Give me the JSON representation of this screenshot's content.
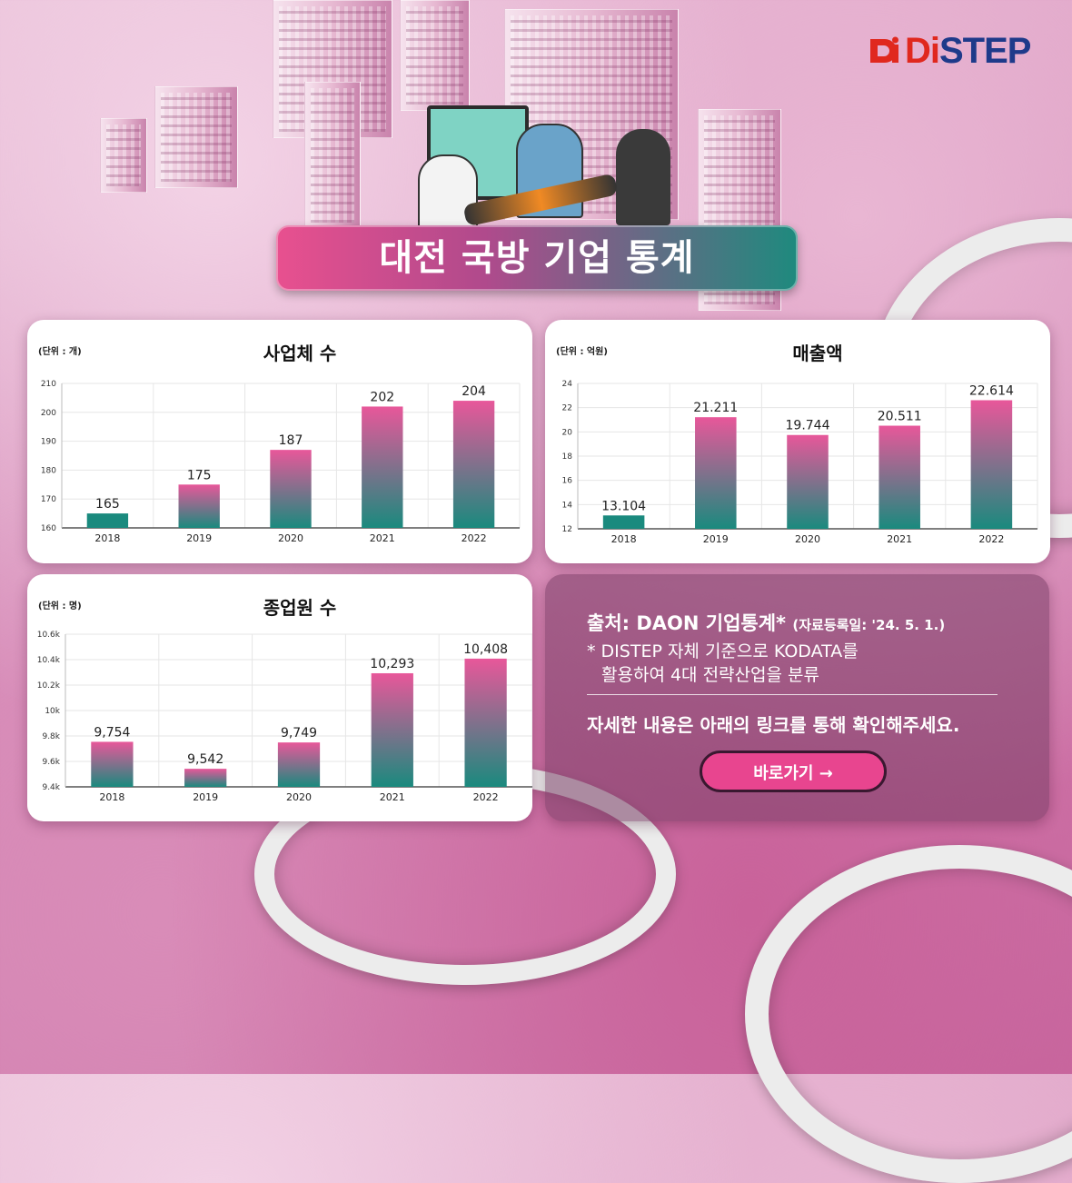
{
  "logo": {
    "text_red": "Di",
    "text_blue": "STEP"
  },
  "title": "대전 국방 기업 통계",
  "charts": [
    {
      "id": "companies",
      "title": "사업체 수",
      "unit": "(단위 : 개)"
    },
    {
      "id": "sales",
      "title": "매출액",
      "unit": "(단위 : 억원)"
    },
    {
      "id": "employees",
      "title": "종업원 수",
      "unit": "(단위 : 명)"
    }
  ],
  "chart_data": [
    {
      "type": "bar",
      "title": "사업체 수",
      "categories": [
        "2018",
        "2019",
        "2020",
        "2021",
        "2022"
      ],
      "values": [
        165,
        175,
        187,
        202,
        204
      ],
      "value_labels": [
        "165",
        "175",
        "187",
        "202",
        "204"
      ],
      "yticks": [
        "160",
        "170",
        "180",
        "190",
        "200",
        "210"
      ],
      "ylim": [
        160,
        210
      ],
      "grid": true
    },
    {
      "type": "bar",
      "title": "매출액",
      "categories": [
        "2018",
        "2019",
        "2020",
        "2021",
        "2022"
      ],
      "values": [
        13.104,
        21.211,
        19.744,
        20.511,
        22.614
      ],
      "value_labels": [
        "13.104",
        "21.211",
        "19.744",
        "20.511",
        "22.614"
      ],
      "yticks": [
        "12",
        "14",
        "16",
        "18",
        "20",
        "22",
        "24"
      ],
      "ylim": [
        12,
        24
      ],
      "grid": true
    },
    {
      "type": "bar",
      "title": "종업원 수",
      "categories": [
        "2018",
        "2019",
        "2020",
        "2021",
        "2022"
      ],
      "values": [
        9754,
        9542,
        9749,
        10293,
        10408
      ],
      "value_labels": [
        "9,754",
        "9,542",
        "9,749",
        "10,293",
        "10,408"
      ],
      "yticks": [
        "9.4k",
        "9.6k",
        "9.8k",
        "10k",
        "10.2k",
        "10.4k",
        "10.6k"
      ],
      "ylim": [
        9400,
        10600
      ],
      "grid": true
    }
  ],
  "info": {
    "source_main": "출처: DAON 기업통계*",
    "source_date": "(자료등록일: '24. 5. 1.)",
    "note_line1": "* DISTEP 자체 기준으로 KODATA를",
    "note_line2": "활용하여 4대 전략산업을 분류",
    "detail": "자세한 내용은 아래의 링크를 통해 확인해주세요.",
    "button_label": "바로가기 →"
  },
  "colors": {
    "bar_top": "#e8579a",
    "bar_bottom": "#1a8a7e",
    "title_banner_left": "#e8508f",
    "title_banner_right": "#1e8a7e",
    "button": "#e8458f",
    "logo_blue": "#1e3a8a",
    "logo_red": "#e0281e"
  }
}
